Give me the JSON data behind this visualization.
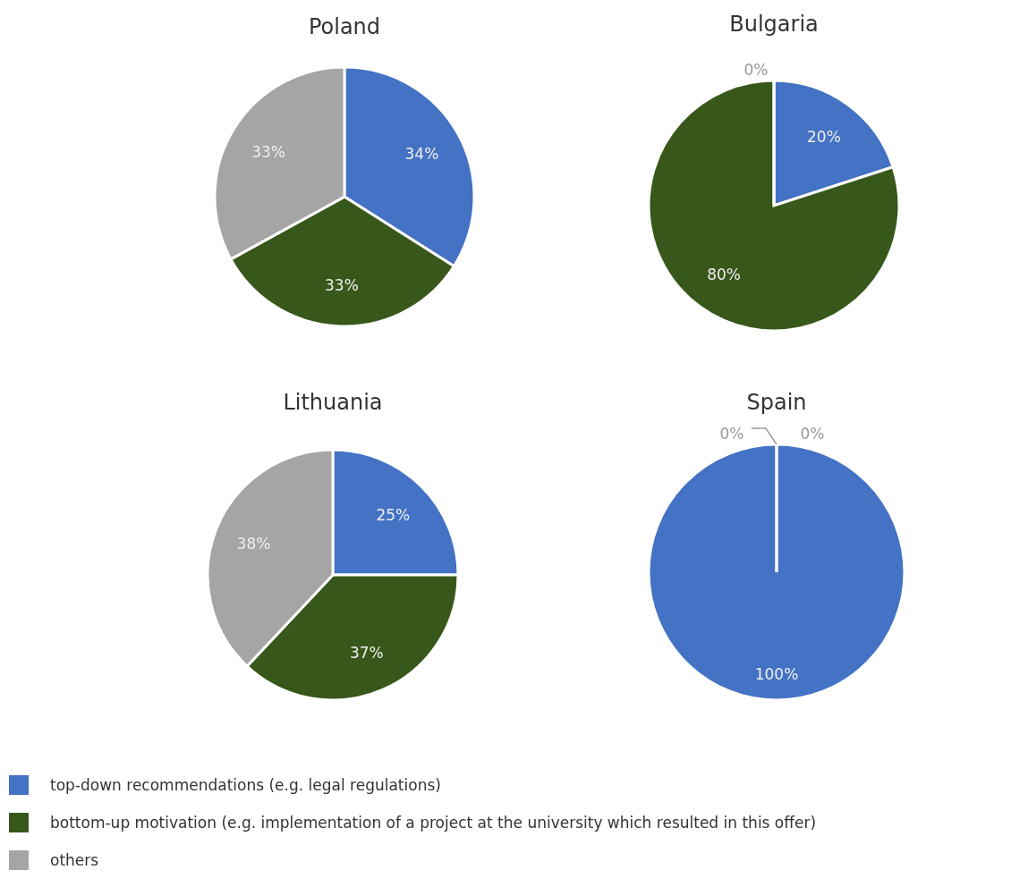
{
  "chart_data": [
    {
      "type": "pie",
      "title": "Poland",
      "categories": [
        null,
        null,
        null
      ],
      "values": [
        34,
        33,
        33
      ],
      "colors": [
        "#4472c4",
        "#38571a",
        "#a5a5a5"
      ],
      "value_labels": [
        "34%",
        "33%",
        "33%"
      ],
      "legend": false
    },
    {
      "type": "pie",
      "title": "Bulgaria",
      "categories": [
        null,
        null,
        null
      ],
      "values": [
        20,
        80,
        0
      ],
      "colors": [
        "#4472c4",
        "#38571a",
        "#a5a5a5"
      ],
      "value_labels": [
        "20%",
        "80%",
        "0%"
      ],
      "legend": false
    },
    {
      "type": "pie",
      "title": "Lithuania",
      "categories": [
        null,
        null,
        null
      ],
      "values": [
        25,
        37,
        38
      ],
      "colors": [
        "#4472c4",
        "#38571a",
        "#a5a5a5"
      ],
      "value_labels": [
        "25%",
        "37%",
        "38%"
      ],
      "legend": false
    },
    {
      "type": "pie",
      "title": "Spain",
      "categories": [
        "top-down recommendations (e.g. legal regulations)",
        "bottom-up motivation (e.g. implementation of a project at the university which resulted in this offer)",
        "others"
      ],
      "values": [
        100,
        0,
        0
      ],
      "colors": [
        "#4472c4",
        "#38571a",
        "#a5a5a5"
      ],
      "value_labels": [
        "100%",
        "0%",
        "0%"
      ],
      "legend": "bottom"
    }
  ]
}
